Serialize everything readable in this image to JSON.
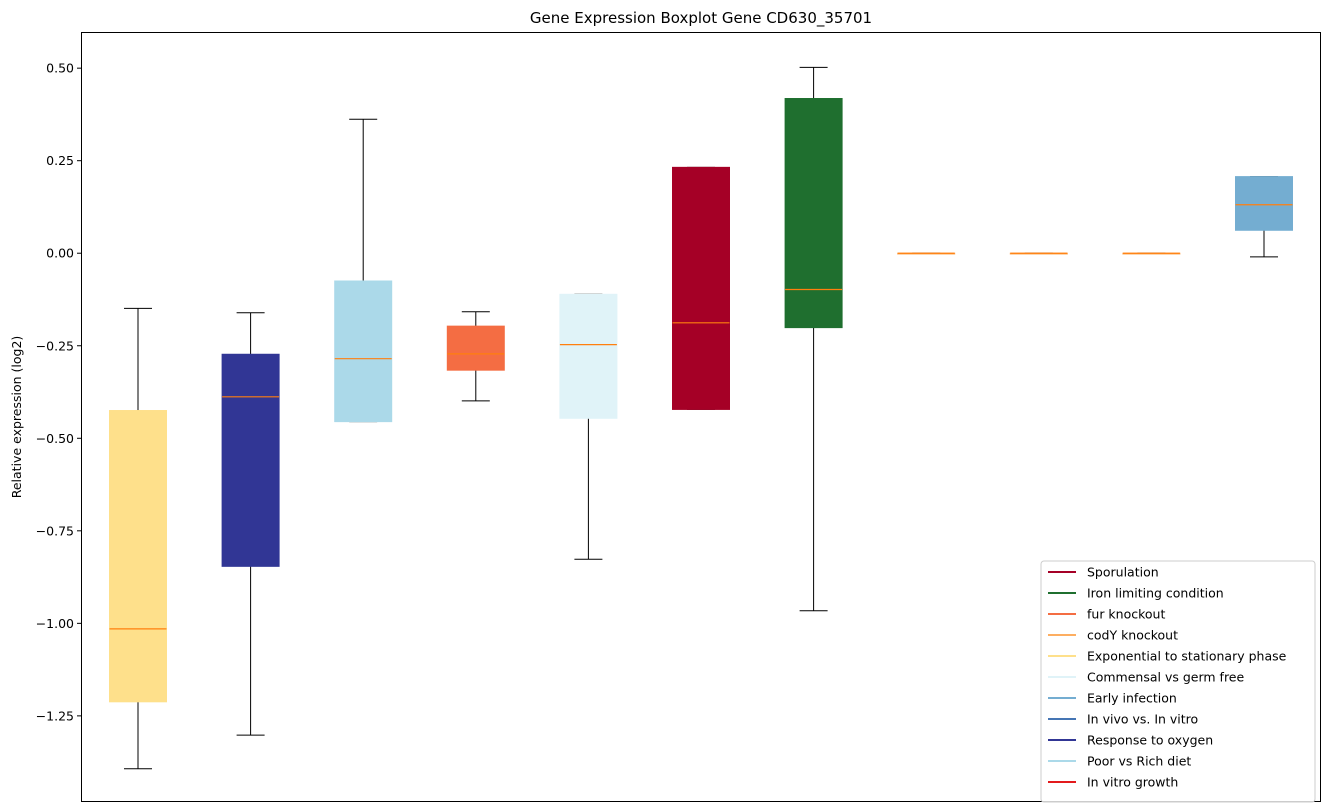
{
  "chart_data": {
    "type": "boxplot",
    "title": "Gene Expression Boxplot Gene CD630_35701",
    "xlabel": "",
    "ylabel": "Relative expression (log2)",
    "ylim": [
      -1.48,
      0.595
    ],
    "yticks": [
      0.5,
      0.25,
      0.0,
      -0.25,
      -0.5,
      -0.75,
      -1.0,
      -1.25
    ],
    "ytick_labels": [
      "0.50",
      "0.25",
      "0.00",
      "−0.25",
      "−0.50",
      "−0.75",
      "−1.00",
      "−1.25"
    ],
    "grid": false,
    "legend_position": "lower-right",
    "boxes": [
      {
        "color": "#fee08b",
        "whisker_low": -1.393,
        "q1": -1.212,
        "median": -1.015,
        "q3": -0.425,
        "whisker_high": -0.149
      },
      {
        "color": "#313695",
        "whisker_low": -1.302,
        "q1": -0.846,
        "median": -0.388,
        "q3": -0.273,
        "whisker_high": -0.161
      },
      {
        "color": "#abd9e9",
        "whisker_low": -0.455,
        "q1": -0.455,
        "median": -0.285,
        "q3": -0.075,
        "whisker_high": 0.362
      },
      {
        "color": "#f46d43",
        "whisker_low": -0.399,
        "q1": -0.316,
        "median": -0.272,
        "q3": -0.197,
        "whisker_high": -0.158
      },
      {
        "color": "#e0f3f8",
        "whisker_low": -0.827,
        "q1": -0.446,
        "median": -0.247,
        "q3": -0.111,
        "whisker_high": -0.111
      },
      {
        "color": "#a50026",
        "whisker_low": -0.422,
        "q1": -0.422,
        "median": -0.188,
        "q3": 0.232,
        "whisker_high": 0.232
      },
      {
        "color": "#1f6f2f",
        "whisker_low": -0.966,
        "q1": -0.201,
        "median": -0.098,
        "q3": 0.418,
        "whisker_high": 0.502
      },
      {
        "color": "#fdae61",
        "whisker_low": 0.0,
        "q1": 0.0,
        "median": 0.0,
        "q3": 0.0,
        "whisker_high": 0.0
      },
      {
        "color": "#fdae61",
        "whisker_low": 0.0,
        "q1": 0.0,
        "median": 0.0,
        "q3": 0.0,
        "whisker_high": 0.0
      },
      {
        "color": "#fdae61",
        "whisker_low": 0.0,
        "q1": 0.0,
        "median": 0.0,
        "q3": 0.0,
        "whisker_high": 0.0
      },
      {
        "color": "#74add1",
        "whisker_low": -0.01,
        "q1": 0.062,
        "median": 0.131,
        "q3": 0.207,
        "whisker_high": 0.207
      }
    ],
    "median_color": "#ff7f0e",
    "legend": [
      {
        "label": "Sporulation",
        "color": "#a50026"
      },
      {
        "label": "Iron limiting condition",
        "color": "#1f6f2f"
      },
      {
        "label": "fur knockout",
        "color": "#f46d43"
      },
      {
        "label": "codY knockout",
        "color": "#fdae61"
      },
      {
        "label": "Exponential to stationary phase",
        "color": "#fee08b"
      },
      {
        "label": "Commensal vs germ free",
        "color": "#e0f3f8"
      },
      {
        "label": "Early infection",
        "color": "#74add1"
      },
      {
        "label": "In vivo vs. In vitro",
        "color": "#4575b4"
      },
      {
        "label": "Response to oxygen",
        "color": "#313695"
      },
      {
        "label": "Poor vs Rich diet",
        "color": "#abd9e9"
      },
      {
        "label": "In vitro growth",
        "color": "#e31a1c"
      }
    ]
  }
}
